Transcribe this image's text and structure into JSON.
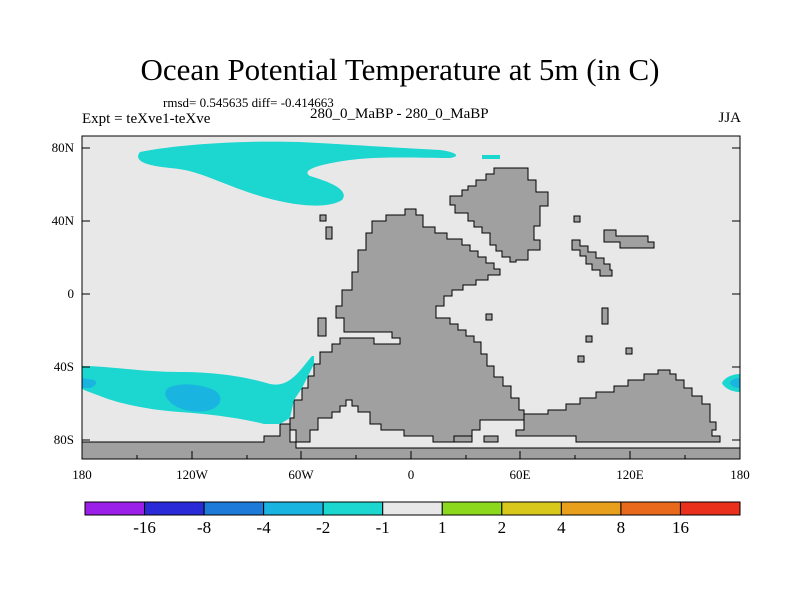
{
  "title": "Ocean Potential Temperature at 5m (in C)",
  "stats": "rmsd= 0.545635 diff= -0.414663",
  "left_header": "Expt = teXve1-teXve",
  "center_header": "280_0_MaBP - 280_0_MaBP",
  "right_header": "JJA",
  "y_ticks": [
    "80N",
    "40N",
    "0",
    "40S",
    "80S"
  ],
  "x_ticks": [
    "180",
    "120W",
    "60W",
    "0",
    "60E",
    "120E",
    "180"
  ],
  "colorbar": {
    "colors": [
      "#9b1fe8",
      "#2a2ad8",
      "#1d7ad8",
      "#1ab4e0",
      "#1cd6d0",
      "#e8e8e8",
      "#8cd81c",
      "#d8c81c",
      "#e8a01c",
      "#e8681c",
      "#e8301c"
    ],
    "labels": [
      "-16",
      "-8",
      "-4",
      "-2",
      "-1",
      "1",
      "2",
      "4",
      "8",
      "16"
    ]
  },
  "colors": {
    "ocean": "#e8e8e8",
    "land": "#a0a0a0",
    "anomaly": "#1cd6d0",
    "anomaly_strong": "#1ab4e0"
  }
}
